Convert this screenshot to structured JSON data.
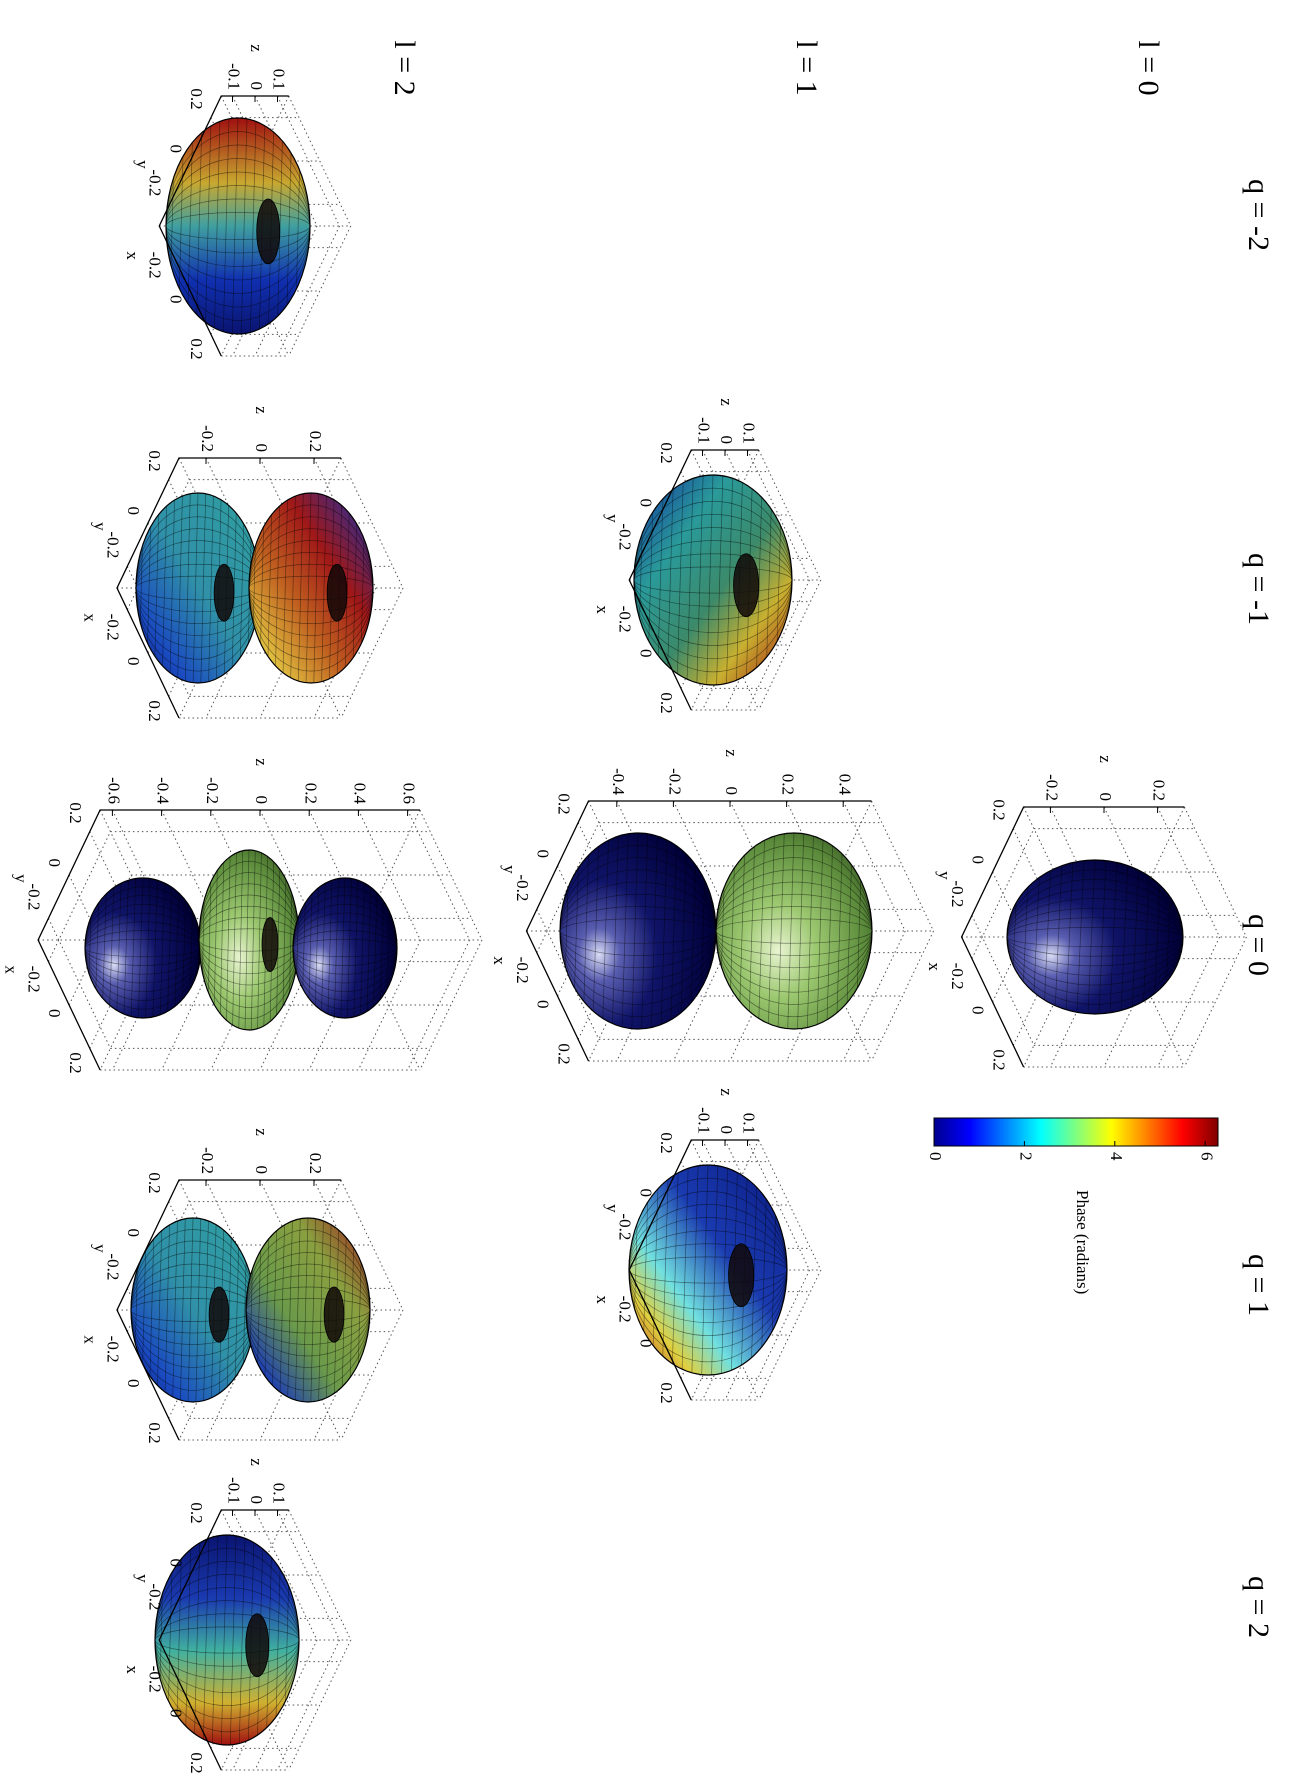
{
  "column_labels": [
    "q = -2",
    "q = -1",
    "q = 0",
    "q = 1",
    "q = 2"
  ],
  "row_labels": [
    "l = 0",
    "l = 1",
    "l = 2"
  ],
  "colorbar": {
    "label": "Phase (radians)",
    "lim": [
      0,
      6.2832
    ],
    "ticks": [
      0,
      2,
      4,
      6
    ],
    "colormap": "jet"
  },
  "chart_data": [
    {
      "type": "surface3d",
      "xlabel": "x",
      "ylabel": "y",
      "zlabel": "z",
      "xlim": [
        -0.3,
        0.3
      ],
      "ylim": [
        -0.3,
        0.3
      ],
      "zlim": [
        -0.3,
        0.3
      ],
      "xticks": [
        -0.2,
        0,
        0.2
      ],
      "yticks": [
        -0.2,
        0,
        0.2
      ],
      "zticks": [
        -0.2,
        0,
        0.2
      ],
      "grid": true
    },
    {
      "type": "surface3d",
      "xlabel": "x",
      "ylabel": "y",
      "zlabel": "z",
      "xlim": [
        -0.3,
        0.3
      ],
      "ylim": [
        -0.3,
        0.3
      ],
      "zlim": [
        -0.15,
        0.15
      ],
      "xticks": [
        -0.2,
        0,
        0.2
      ],
      "yticks": [
        -0.2,
        0,
        0.2
      ],
      "zticks": [
        -0.1,
        0,
        0.1
      ],
      "grid": true
    },
    {
      "type": "surface3d",
      "xlabel": "x",
      "ylabel": "y",
      "zlabel": "z",
      "xlim": [
        -0.3,
        0.3
      ],
      "ylim": [
        -0.3,
        0.3
      ],
      "zlim": [
        -0.5,
        0.5
      ],
      "xticks": [
        -0.2,
        0,
        0.2
      ],
      "yticks": [
        -0.2,
        0,
        0.2
      ],
      "zticks": [
        -0.4,
        -0.2,
        0,
        0.2,
        0.4
      ],
      "grid": true
    },
    {
      "type": "surface3d",
      "xlabel": "x",
      "ylabel": "y",
      "zlabel": "z",
      "xlim": [
        -0.3,
        0.3
      ],
      "ylim": [
        -0.3,
        0.3
      ],
      "zlim": [
        -0.15,
        0.15
      ],
      "xticks": [
        -0.2,
        0,
        0.2
      ],
      "yticks": [
        -0.2,
        0,
        0.2
      ],
      "zticks": [
        -0.1,
        0,
        0.1
      ],
      "grid": true
    },
    {
      "type": "surface3d",
      "xlabel": "x",
      "ylabel": "y",
      "zlabel": "z",
      "xlim": [
        -0.3,
        0.3
      ],
      "ylim": [
        -0.3,
        0.3
      ],
      "zlim": [
        -0.15,
        0.15
      ],
      "xticks": [
        -0.2,
        0,
        0.2
      ],
      "yticks": [
        -0.2,
        0,
        0.2
      ],
      "zticks": [
        -0.1,
        0,
        0.1
      ],
      "grid": true
    },
    {
      "type": "surface3d",
      "xlabel": "x",
      "ylabel": "y",
      "zlabel": "z",
      "xlim": [
        -0.3,
        0.3
      ],
      "ylim": [
        -0.3,
        0.3
      ],
      "zlim": [
        -0.3,
        0.3
      ],
      "xticks": [
        -0.2,
        0,
        0.2
      ],
      "yticks": [
        -0.2,
        0,
        0.2
      ],
      "zticks": [
        -0.2,
        0,
        0.2
      ],
      "grid": true
    },
    {
      "type": "surface3d",
      "xlabel": "x",
      "ylabel": "y",
      "zlabel": "z",
      "xlim": [
        -0.3,
        0.3
      ],
      "ylim": [
        -0.3,
        0.3
      ],
      "zlim": [
        -0.65,
        0.65
      ],
      "xticks": [
        -0.2,
        0,
        0.2
      ],
      "yticks": [
        -0.2,
        0,
        0.2
      ],
      "zticks": [
        -0.6,
        -0.4,
        -0.2,
        0,
        0.2,
        0.4,
        0.6
      ],
      "grid": true
    },
    {
      "type": "surface3d",
      "xlabel": "x",
      "ylabel": "y",
      "zlabel": "z",
      "xlim": [
        -0.3,
        0.3
      ],
      "ylim": [
        -0.3,
        0.3
      ],
      "zlim": [
        -0.3,
        0.3
      ],
      "xticks": [
        -0.2,
        0,
        0.2
      ],
      "yticks": [
        -0.2,
        0,
        0.2
      ],
      "zticks": [
        -0.2,
        0,
        0.2
      ],
      "grid": true
    },
    {
      "type": "surface3d",
      "xlabel": "x",
      "ylabel": "y",
      "zlabel": "z",
      "xlim": [
        -0.3,
        0.3
      ],
      "ylim": [
        -0.3,
        0.3
      ],
      "zlim": [
        -0.15,
        0.15
      ],
      "xticks": [
        -0.2,
        0,
        0.2
      ],
      "yticks": [
        -0.2,
        0,
        0.2
      ],
      "zticks": [
        -0.1,
        0,
        0.1
      ],
      "grid": true
    }
  ]
}
